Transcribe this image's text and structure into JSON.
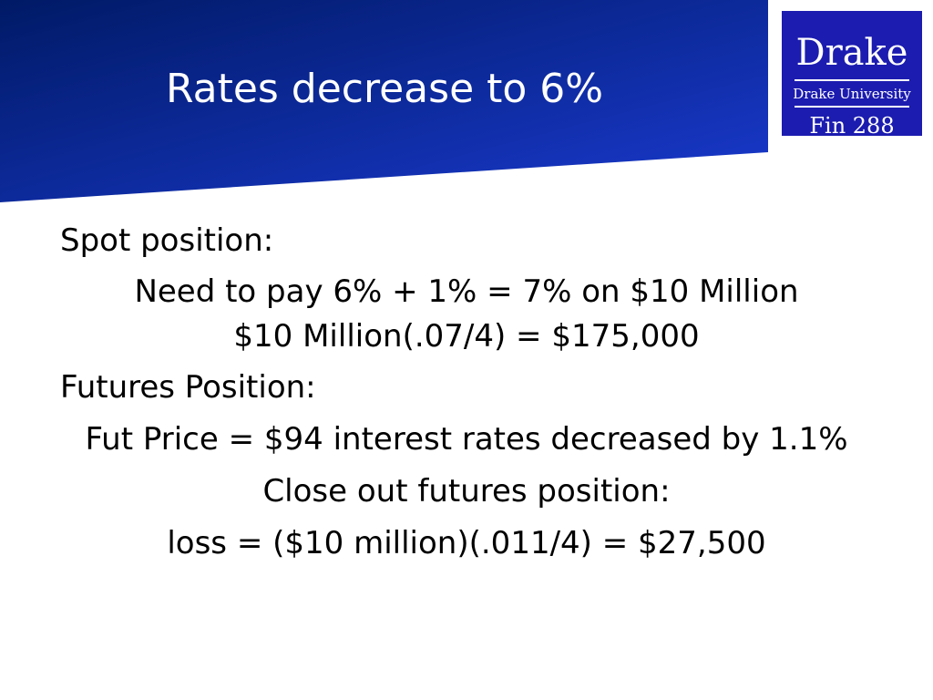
{
  "slide": {
    "title": "Rates decrease to 6%"
  },
  "logo": {
    "name": "Drake",
    "subtitle": "Drake University",
    "course": "Fin 288"
  },
  "body": {
    "spot_heading": "Spot position:",
    "spot_line_1": "Need to pay 6% + 1% = 7% on  $10 Million",
    "spot_line_2": "$10 Million(.07/4) = $175,000",
    "futures_heading": "Futures Position:",
    "futures_line_1": "Fut Price = $94 interest rates decreased by 1.1%",
    "futures_line_2": "Close out futures position:",
    "futures_line_3": "loss = ($10 million)(.011/4) = $27,500"
  },
  "colors": {
    "banner_dark": "#001a66",
    "banner_light": "#1a3ad0",
    "logo_background": "#1c1cb0",
    "title_text": "#ffffff",
    "body_text": "#000000"
  }
}
